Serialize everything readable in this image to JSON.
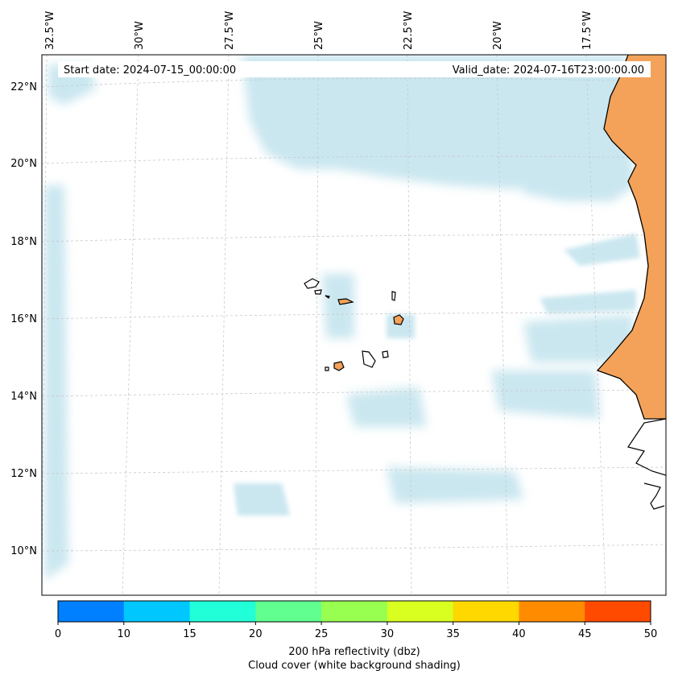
{
  "map": {
    "start_date": "Start date: 2024-07-15_00:00:00",
    "valid_date": "Valid_date: 2024-07-16T23:00:00.00",
    "longitude_labels": [
      "32.5°W",
      "30°W",
      "27.5°W",
      "25°W",
      "22.5°W",
      "20°W",
      "17.5°W"
    ],
    "latitude_labels": [
      "22°N",
      "20°N",
      "18°N",
      "16°N",
      "14°N",
      "12°N",
      "10°N"
    ],
    "land_color": "#f4a25a",
    "cloud_color": "#9fd3e3",
    "coastline_color": "#000000",
    "gridline_style": "dashed light gray"
  },
  "colorbar": {
    "ticks": [
      "0",
      "10",
      "15",
      "20",
      "25",
      "30",
      "35",
      "40",
      "45",
      "50"
    ],
    "colors": [
      "#0080ff",
      "#00c8ff",
      "#20ffd8",
      "#60ff90",
      "#98ff50",
      "#d8ff20",
      "#ffd800",
      "#ff8c00",
      "#ff4a00"
    ],
    "label_line1": "200 hPa reflectivity (dbz)",
    "label_line2": "Cloud cover (white background shading)"
  }
}
